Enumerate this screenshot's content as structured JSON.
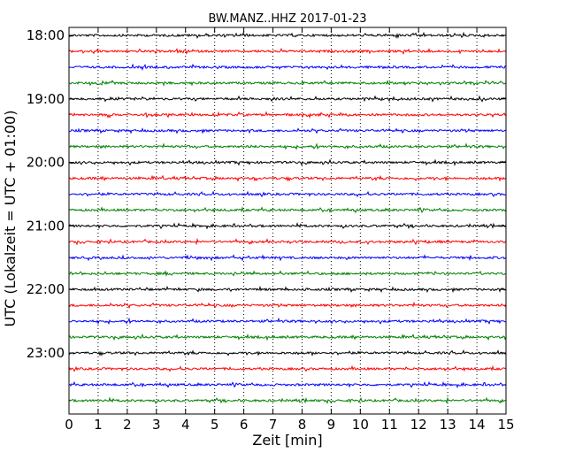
{
  "chart_data": {
    "type": "line",
    "subtype": "helicorder",
    "title": "BW.MANZ..HHZ 2017-01-23",
    "xlabel": "Zeit  [min]",
    "ylabel": "UTC (Lokalzeit = UTC + 01:00)",
    "xlim": [
      0,
      15
    ],
    "x_ticks": [
      "0",
      "1",
      "2",
      "3",
      "4",
      "5",
      "6",
      "7",
      "8",
      "9",
      "10",
      "11",
      "12",
      "13",
      "14",
      "15"
    ],
    "y_ticks": [
      "18:00",
      "19:00",
      "20:00",
      "21:00",
      "22:00",
      "23:00"
    ],
    "grid": {
      "x": true,
      "y": false
    },
    "trace_interval_minutes": 15,
    "trace_colors": [
      "#000000",
      "#ff0000",
      "#0000ff",
      "#008000"
    ],
    "series": [
      {
        "start": "18:00",
        "color": "#000000"
      },
      {
        "start": "18:15",
        "color": "#ff0000"
      },
      {
        "start": "18:30",
        "color": "#0000ff"
      },
      {
        "start": "18:45",
        "color": "#008000"
      },
      {
        "start": "19:00",
        "color": "#000000"
      },
      {
        "start": "19:15",
        "color": "#ff0000"
      },
      {
        "start": "19:30",
        "color": "#0000ff"
      },
      {
        "start": "19:45",
        "color": "#008000"
      },
      {
        "start": "20:00",
        "color": "#000000"
      },
      {
        "start": "20:15",
        "color": "#ff0000"
      },
      {
        "start": "20:30",
        "color": "#0000ff"
      },
      {
        "start": "20:45",
        "color": "#008000"
      },
      {
        "start": "21:00",
        "color": "#000000"
      },
      {
        "start": "21:15",
        "color": "#ff0000"
      },
      {
        "start": "21:30",
        "color": "#0000ff"
      },
      {
        "start": "21:45",
        "color": "#008000"
      },
      {
        "start": "22:00",
        "color": "#000000"
      },
      {
        "start": "22:15",
        "color": "#ff0000"
      },
      {
        "start": "22:30",
        "color": "#0000ff"
      },
      {
        "start": "22:45",
        "color": "#008000"
      },
      {
        "start": "23:00",
        "color": "#000000"
      },
      {
        "start": "23:15",
        "color": "#ff0000"
      },
      {
        "start": "23:30",
        "color": "#0000ff"
      },
      {
        "start": "23:45",
        "color": "#008000"
      }
    ]
  }
}
